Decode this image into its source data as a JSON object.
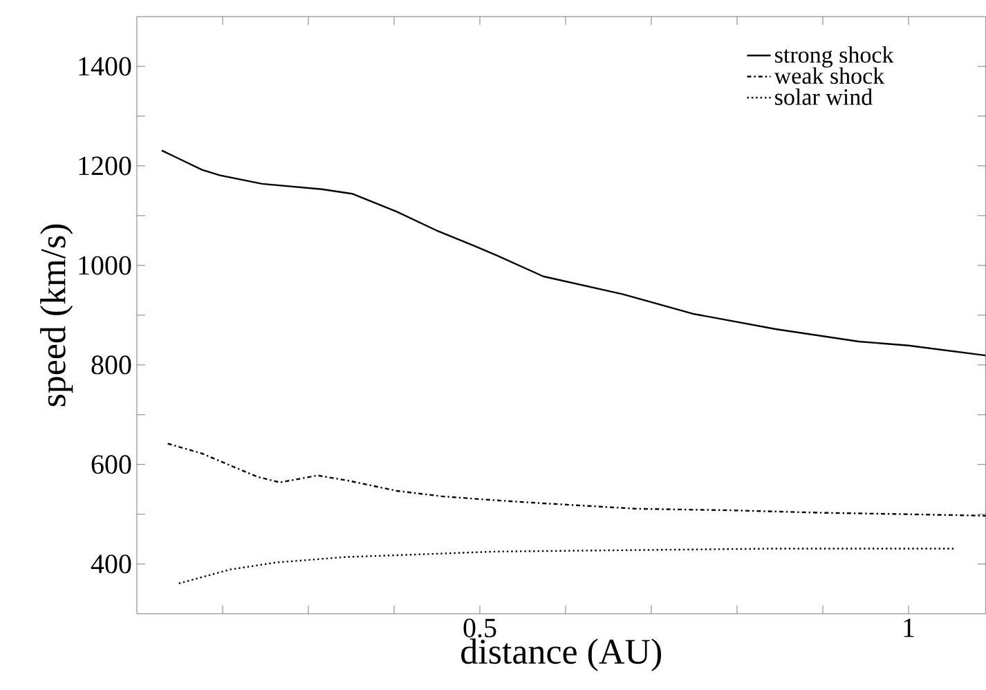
{
  "chart_data": {
    "type": "line",
    "xlabel": "distance (AU)",
    "ylabel": "speed (km/s)",
    "xlim": [
      0.1,
      1.09
    ],
    "ylim": [
      300,
      1500
    ],
    "xticks": [
      {
        "value": 0.2,
        "label": null
      },
      {
        "value": 0.3,
        "label": null
      },
      {
        "value": 0.4,
        "label": null
      },
      0.5,
      {
        "value": 0.6,
        "label": null
      },
      {
        "value": 0.7,
        "label": null
      },
      {
        "value": 0.8,
        "label": null
      },
      {
        "value": 0.9,
        "label": null
      },
      1
    ],
    "yticks": [
      400,
      {
        "value": 500,
        "label": null
      },
      600,
      {
        "value": 700,
        "label": null
      },
      800,
      {
        "value": 900,
        "label": null
      },
      1000,
      {
        "value": 1100,
        "label": null
      },
      1200,
      {
        "value": 1300,
        "label": null
      },
      1400
    ],
    "grid": false,
    "legend": "top right",
    "marker": "none",
    "series": [
      {
        "name": "strong shock",
        "color": "#000000",
        "line_style": "solid",
        "x": [
          0.129,
          0.176,
          0.197,
          0.246,
          0.316,
          0.351,
          0.403,
          0.451,
          0.494,
          0.521,
          0.574,
          0.667,
          0.748,
          0.845,
          0.942,
          1.0,
          1.09
        ],
        "values": [
          1231,
          1192,
          1181,
          1164,
          1153,
          1144,
          1108,
          1069,
          1039,
          1019,
          978,
          942,
          903,
          872,
          847,
          839,
          819
        ]
      },
      {
        "name": "weak shock",
        "color": "#000000",
        "line_style": "dashdot",
        "x": [
          0.136,
          0.176,
          0.209,
          0.241,
          0.267,
          0.311,
          0.348,
          0.403,
          0.456,
          0.518,
          0.574,
          0.683,
          0.791,
          0.898,
          1.0,
          1.09
        ],
        "values": [
          642,
          622,
          598,
          575,
          564,
          578,
          567,
          547,
          536,
          528,
          522,
          511,
          508,
          503,
          500,
          497
        ]
      },
      {
        "name": "solar wind",
        "color": "#000000",
        "line_style": "dotted",
        "x": [
          0.149,
          0.209,
          0.262,
          0.343,
          0.424,
          0.518,
          0.683,
          0.845,
          1.055
        ],
        "values": [
          361,
          389,
          403,
          414,
          419,
          425,
          428,
          431,
          431
        ]
      }
    ]
  }
}
